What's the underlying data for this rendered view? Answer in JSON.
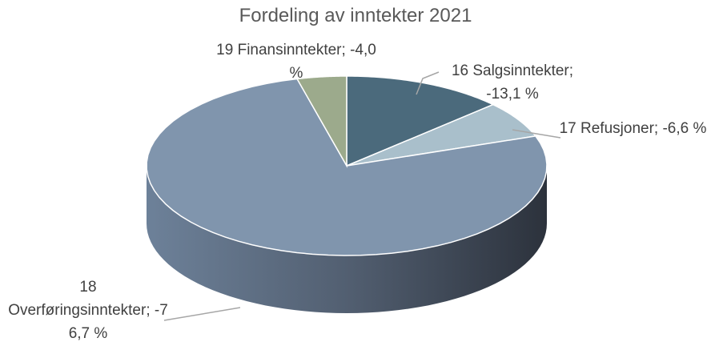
{
  "chart_data": {
    "type": "pie",
    "title": "Fordeling av inntekter 2021",
    "categories": [
      "16 Salgsinntekter",
      "17 Refusjoner",
      "18 Overføringsinntekter",
      "19 Finansinntekter"
    ],
    "values": [
      -13.1,
      -6.6,
      -76.7,
      -4.0
    ],
    "value_labels": [
      "-13,1 %",
      "-6,6 %",
      "-76,7 %",
      "-4,0 %"
    ],
    "label_separator": "; ",
    "colors": [
      "#4b6a7c",
      "#a9bfcb",
      "#8095ad",
      "#9caa8c"
    ]
  }
}
